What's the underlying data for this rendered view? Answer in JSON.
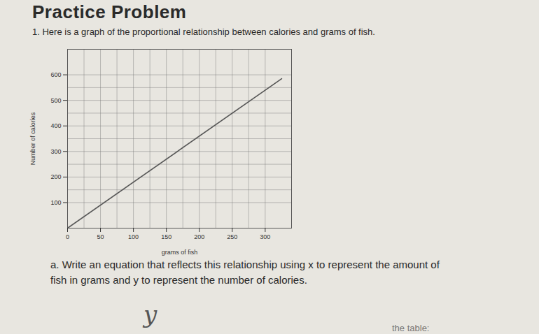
{
  "header": {
    "title": "Practice Problem",
    "intro": "1.  Here is a graph of the proportional relationship between calories and grams of fish."
  },
  "chart_data": {
    "type": "line",
    "x_label": "grams of fish",
    "y_label": "Number of calories",
    "x": [
      0,
      325
    ],
    "values": [
      0,
      585
    ],
    "color": "#555555",
    "xlim": [
      0,
      340
    ],
    "ylim": [
      0,
      700
    ],
    "xticks": [
      0,
      50,
      100,
      150,
      200,
      250,
      300
    ],
    "yticks": [
      100,
      200,
      300,
      400,
      500,
      600
    ],
    "grid": true
  },
  "question": {
    "label": "a.",
    "text": "Write an equation that reflects this relationship using x to represent the amount of fish in grams and y to represent the number of calories.",
    "answer": "y"
  },
  "footer": "the table:"
}
